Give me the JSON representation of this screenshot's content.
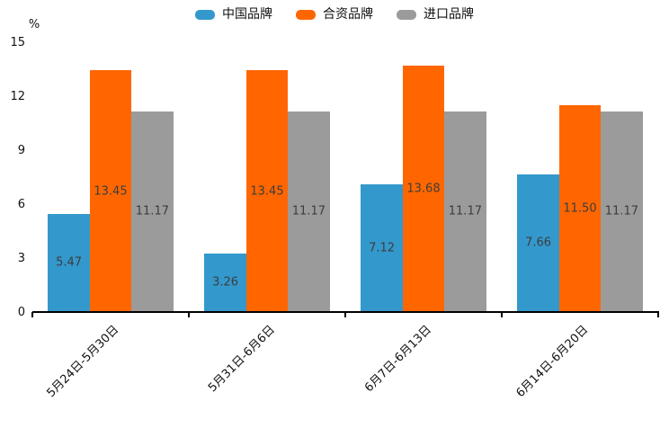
{
  "chart_data": {
    "type": "bar",
    "title": "",
    "categories": [
      "5月24日-5月30日",
      "5月31日-6月6日",
      "6月7日-6月13日",
      "6月14日-6月20日"
    ],
    "series": [
      {
        "name": "中国品牌",
        "color": "#3398cc",
        "values": [
          5.47,
          3.26,
          7.12,
          7.66
        ]
      },
      {
        "name": "合资品牌",
        "color": "#ff6600",
        "values": [
          13.45,
          13.45,
          13.68,
          11.5
        ]
      },
      {
        "name": "进口品牌",
        "color": "#9b9b9b",
        "values": [
          11.17,
          11.17,
          11.17,
          11.17
        ]
      }
    ],
    "xlabel": "",
    "ylabel": "%",
    "ylim": [
      0,
      15
    ],
    "yticks": [
      0,
      3,
      6,
      9,
      12,
      15
    ],
    "grid": false,
    "legend_position": "top",
    "value_labels": "centered-in-bar",
    "value_label_decimals": 2,
    "axis_color": "#000000",
    "value_label_color": "#3d3d3d"
  }
}
